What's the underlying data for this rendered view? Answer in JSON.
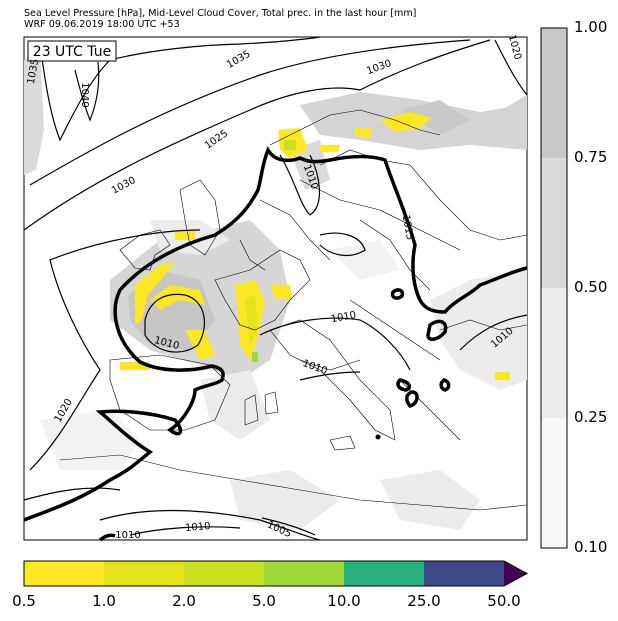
{
  "header": {
    "line1": "Sea Level Pressure [hPa], Mid-Level Cloud Cover, Total prec. in the last hour [mm]",
    "line2": "WRF 09.06.2019 18:00 UTC +53"
  },
  "map": {
    "time_label": "23 UTC Tue",
    "isobar_labels": [
      "1035",
      "1040",
      "1035",
      "1030",
      "1030",
      "1025",
      "1020",
      "1010",
      "1015",
      "1010",
      "1010",
      "1010",
      "1010",
      "1020",
      "1010",
      "1005",
      "1010"
    ]
  },
  "cloud_colorbar": {
    "ticks": [
      "1.00",
      "0.75",
      "0.50",
      "0.25",
      "0.10"
    ],
    "colors": [
      "#c8c8c8",
      "#dadada",
      "#ececec",
      "#f8f8f8"
    ]
  },
  "precip_colorbar": {
    "ticks": [
      "0.5",
      "1.0",
      "2.0",
      "5.0",
      "10.0",
      "25.0",
      "50.0"
    ],
    "colors": [
      "#fde725",
      "#e4e418",
      "#c8e020",
      "#a0da39",
      "#2ab07f",
      "#3e4989",
      "#440154"
    ]
  }
}
